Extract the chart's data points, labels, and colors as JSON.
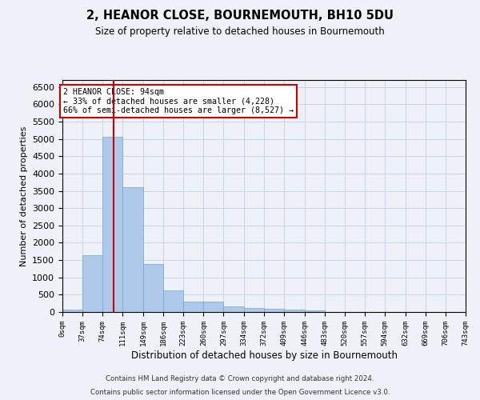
{
  "title": "2, HEANOR CLOSE, BOURNEMOUTH, BH10 5DU",
  "subtitle": "Size of property relative to detached houses in Bournemouth",
  "xlabel": "Distribution of detached houses by size in Bournemouth",
  "ylabel": "Number of detached properties",
  "bar_color": "#aec9ea",
  "bar_edge_color": "#6aaad4",
  "grid_color": "#c8d4e8",
  "background_color": "#eef2f8",
  "vline_x": 94,
  "vline_color": "#cc0000",
  "annotation_text": "2 HEANOR CLOSE: 94sqm\n← 33% of detached houses are smaller (4,228)\n66% of semi-detached houses are larger (8,527) →",
  "annotation_box_color": "#ffffff",
  "annotation_box_edge": "#cc0000",
  "bins": [
    0,
    37,
    74,
    111,
    149,
    186,
    223,
    260,
    297,
    334,
    372,
    409,
    446,
    483,
    520,
    557,
    594,
    632,
    669,
    706,
    743
  ],
  "bar_heights": [
    75,
    1640,
    5060,
    3600,
    1390,
    620,
    300,
    295,
    155,
    110,
    95,
    75,
    35,
    5,
    2,
    1,
    1,
    0,
    0,
    0
  ],
  "ylim": [
    0,
    6700
  ],
  "yticks": [
    0,
    500,
    1000,
    1500,
    2000,
    2500,
    3000,
    3500,
    4000,
    4500,
    5000,
    5500,
    6000,
    6500
  ],
  "footer_line1": "Contains HM Land Registry data © Crown copyright and database right 2024.",
  "footer_line2": "Contains public sector information licensed under the Open Government Licence v3.0."
}
